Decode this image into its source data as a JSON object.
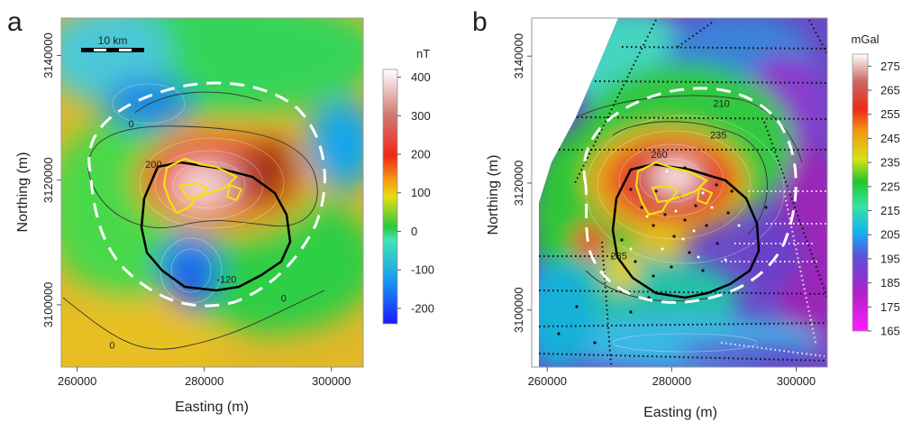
{
  "chart_data": [
    {
      "type": "heatmap",
      "panel_label": "a",
      "xlabel": "Easting (m)",
      "ylabel": "Northing (m)",
      "x_ticks": [
        260000,
        280000,
        300000
      ],
      "x_tick_labels": [
        "260000",
        "280000",
        "300000"
      ],
      "y_ticks": [
        3100000,
        3120000,
        3140000
      ],
      "y_tick_labels": [
        "3100000",
        "3120000",
        "3140000"
      ],
      "xlim": [
        257500,
        305000
      ],
      "ylim": [
        3090000,
        3146000
      ],
      "colorbar": {
        "unit": "nT",
        "min": -240,
        "max": 420,
        "ticks": [
          400,
          300,
          200,
          100,
          0,
          -100,
          -200
        ],
        "tick_labels": [
          "400",
          "300",
          "200",
          "100",
          "0",
          "-100",
          "-200"
        ]
      },
      "scale_bar": "10 km",
      "contour_labels": [
        {
          "text": "200",
          "x": 272000,
          "y": 3122000
        },
        {
          "text": "0",
          "x": 268500,
          "y": 3128500
        },
        {
          "text": "0",
          "x": 265500,
          "y": 3093000
        },
        {
          "text": "0",
          "x": 292500,
          "y": 3100500
        },
        {
          "text": "-120",
          "x": 283500,
          "y": 3103500
        }
      ],
      "anomalies": [
        {
          "x": 280000,
          "y": 3120000,
          "value": 400
        },
        {
          "x": 279000,
          "y": 3103000,
          "value": -230
        },
        {
          "x": 280500,
          "y": 3134000,
          "value": -120
        },
        {
          "x": 286000,
          "y": 3124000,
          "value": 180
        },
        {
          "x": 296000,
          "y": 3125000,
          "value": -70
        }
      ],
      "grid": false
    },
    {
      "type": "heatmap",
      "panel_label": "b",
      "xlabel": "Easting (m)",
      "ylabel": "Northing (m)",
      "x_ticks": [
        260000,
        280000,
        300000
      ],
      "x_tick_labels": [
        "260000",
        "280000",
        "300000"
      ],
      "y_ticks": [
        3100000,
        3120000,
        3140000
      ],
      "y_tick_labels": [
        "3100000",
        "3120000",
        "3140000"
      ],
      "xlim": [
        257500,
        305000
      ],
      "ylim": [
        3091000,
        3146000
      ],
      "colorbar": {
        "unit": "mGal",
        "min": 165,
        "max": 280,
        "ticks": [
          275,
          265,
          255,
          245,
          235,
          225,
          215,
          205,
          195,
          185,
          175,
          165
        ],
        "tick_labels": [
          "275",
          "265",
          "255",
          "245",
          "235",
          "225",
          "215",
          "205",
          "195",
          "185",
          "175",
          "165"
        ]
      },
      "scale_bar": "10 km",
      "contour_labels": [
        {
          "text": "260",
          "x": 278000,
          "y": 3124000
        },
        {
          "text": "235",
          "x": 287500,
          "y": 3127000
        },
        {
          "text": "210",
          "x": 288000,
          "y": 3132000
        },
        {
          "text": "235",
          "x": 271500,
          "y": 3108000
        }
      ],
      "anomalies": [
        {
          "x": 280000,
          "y": 3120000,
          "value": 275
        },
        {
          "x": 270000,
          "y": 3107000,
          "value": 255
        },
        {
          "x": 300000,
          "y": 3110000,
          "value": 190
        },
        {
          "x": 295000,
          "y": 3138000,
          "value": 200
        },
        {
          "x": 270000,
          "y": 3140000,
          "value": 205
        }
      ],
      "grid": false
    }
  ]
}
